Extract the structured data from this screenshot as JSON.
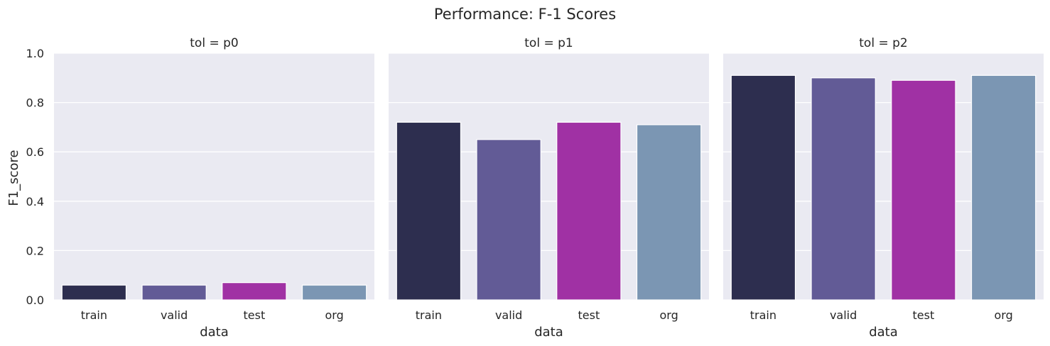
{
  "chart_data": {
    "type": "bar",
    "title": "Performance: F-1 Scores",
    "xlabel": "data",
    "ylabel": "F1_score",
    "ylim": [
      0,
      1.0
    ],
    "yticks": [
      "0.0",
      "0.2",
      "0.4",
      "0.6",
      "0.8",
      "1.0"
    ],
    "categories": [
      "train",
      "valid",
      "test",
      "org"
    ],
    "colors": [
      "#2d2e4f",
      "#625b96",
      "#a031a4",
      "#7b96b3"
    ],
    "background": "#eaeaf2",
    "grid": true,
    "facets": [
      {
        "title": "tol = p0",
        "values": [
          0.06,
          0.06,
          0.07,
          0.06
        ]
      },
      {
        "title": "tol = p1",
        "values": [
          0.72,
          0.65,
          0.72,
          0.71
        ]
      },
      {
        "title": "tol = p2",
        "values": [
          0.91,
          0.9,
          0.89,
          0.91
        ]
      }
    ]
  }
}
